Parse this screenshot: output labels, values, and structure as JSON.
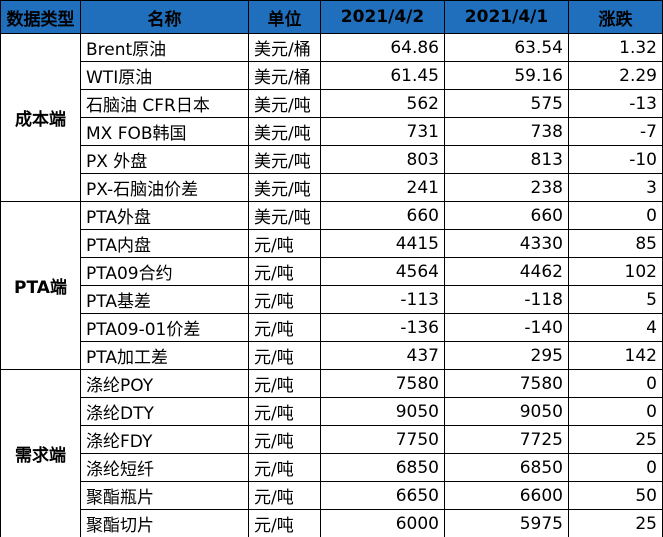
{
  "table": {
    "headers": [
      "数据类型",
      "名称",
      "单位",
      "2021/4/2",
      "2021/4/1",
      "涨跌"
    ],
    "groups": [
      {
        "category": "成本端",
        "rows": [
          [
            "Brent原油",
            "美元/桶",
            "64.86",
            "63.54",
            "1.32"
          ],
          [
            "WTI原油",
            "美元/桶",
            "61.45",
            "59.16",
            "2.29"
          ],
          [
            "石脑油 CFR日本",
            "美元/吨",
            "562",
            "575",
            "-13"
          ],
          [
            "MX FOB韩国",
            "美元/吨",
            "731",
            "738",
            "-7"
          ],
          [
            "PX  外盘",
            "美元/吨",
            "803",
            "813",
            "-10"
          ],
          [
            "PX-石脑油价差",
            "美元/吨",
            "241",
            "238",
            "3"
          ]
        ]
      },
      {
        "category": "PTA端",
        "rows": [
          [
            "PTA外盘",
            "美元/吨",
            "660",
            "660",
            "0"
          ],
          [
            "PTA内盘",
            "元/吨",
            "4415",
            "4330",
            "85"
          ],
          [
            "PTA09合约",
            "元/吨",
            "4564",
            "4462",
            "102"
          ],
          [
            "PTA基差",
            "元/吨",
            "-113",
            "-118",
            "5"
          ],
          [
            "PTA09-01价差",
            "元/吨",
            "-136",
            "-140",
            "4"
          ],
          [
            "PTA加工差",
            "元/吨",
            "437",
            "295",
            "142"
          ]
        ]
      },
      {
        "category": "需求端",
        "rows": [
          [
            "涤纶POY",
            "元/吨",
            "7580",
            "7580",
            "0"
          ],
          [
            "涤纶DTY",
            "元/吨",
            "9050",
            "9050",
            "0"
          ],
          [
            "涤纶FDY",
            "元/吨",
            "7750",
            "7725",
            "25"
          ],
          [
            "涤纶短纤",
            "元/吨",
            "6850",
            "6850",
            "0"
          ],
          [
            "聚酯瓶片",
            "元/吨",
            "6650",
            "6600",
            "50"
          ],
          [
            "聚酯切片",
            "元/吨",
            "6000",
            "5975",
            "25"
          ]
        ]
      }
    ]
  },
  "colors": {
    "header_background": "#1f6fbd",
    "border": "#000000"
  }
}
